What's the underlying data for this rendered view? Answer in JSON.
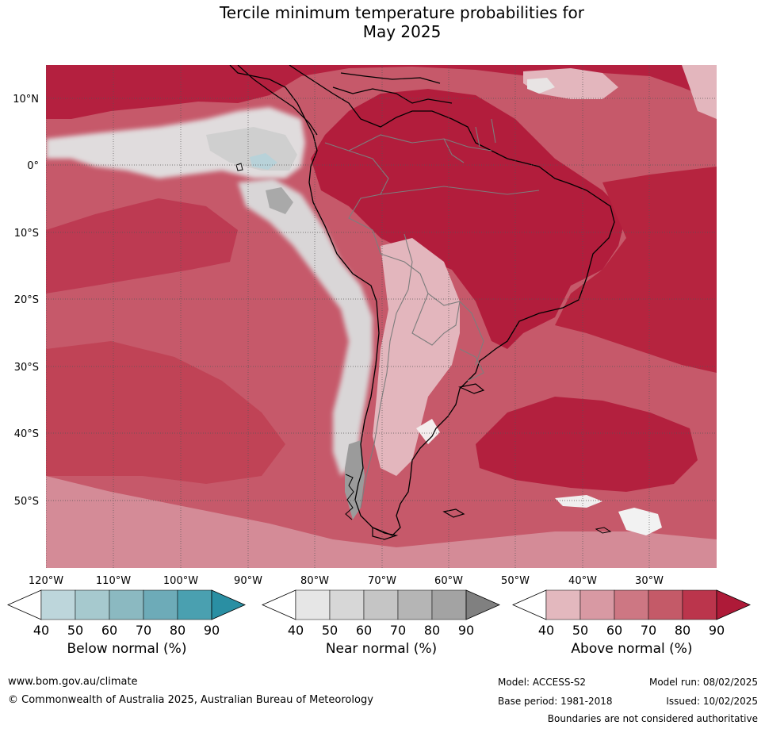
{
  "title": {
    "line1": "Tercile minimum temperature probabilities for",
    "line2": "May 2025"
  },
  "map": {
    "lat_labels": [
      "10°N",
      "0°",
      "10°S",
      "20°S",
      "30°S",
      "40°S",
      "50°S"
    ],
    "lon_labels": [
      "120°W",
      "110°W",
      "100°W",
      "90°W",
      "80°W",
      "70°W",
      "60°W",
      "50°W",
      "40°W",
      "30°W"
    ],
    "colors": {
      "above_40": "#e3b6bd",
      "above_50": "#d8949f",
      "above_60": "#cc7482",
      "above_70": "#c35565",
      "above_80": "#bb3149",
      "above_90": "#b1193a",
      "near_40": "#e6e6e6",
      "near_50": "#d7d7d7",
      "near_60": "#c4c4c4",
      "below_40": "#b8d2d9",
      "land_border": "#000000",
      "country_border": "#7d7d7d"
    }
  },
  "colorbars": [
    {
      "name": "below",
      "label": "Below normal (%)",
      "ticks": [
        "40",
        "50",
        "60",
        "70",
        "80",
        "90"
      ],
      "colors": [
        "#ffffff",
        "#bdd6db",
        "#a6c9ce",
        "#8bb9c1",
        "#6dabb8",
        "#4aa0b0",
        "#2a8fa3"
      ]
    },
    {
      "name": "near",
      "label": "Near normal (%)",
      "ticks": [
        "40",
        "50",
        "60",
        "70",
        "80",
        "90"
      ],
      "colors": [
        "#ffffff",
        "#e6e6e6",
        "#d7d7d7",
        "#c5c5c5",
        "#b5b5b5",
        "#a3a3a3",
        "#808080"
      ]
    },
    {
      "name": "above",
      "label": "Above normal (%)",
      "ticks": [
        "40",
        "50",
        "60",
        "70",
        "80",
        "90"
      ],
      "colors": [
        "#ffffff",
        "#e3b8be",
        "#d899a3",
        "#cd7783",
        "#c45a68",
        "#bb354c",
        "#ae1a38"
      ]
    }
  ],
  "footer": {
    "website": "www.bom.gov.au/climate",
    "copyright": "© Commonwealth of Australia 2025, Australian Bureau of Meteorology",
    "model": "Model: ACCESS-S2",
    "model_run": "Model run: 08/02/2025",
    "base_period": "Base period: 1981-2018",
    "issued": "Issued: 10/02/2025",
    "disclaimer": "Boundaries are not considered authoritative"
  }
}
